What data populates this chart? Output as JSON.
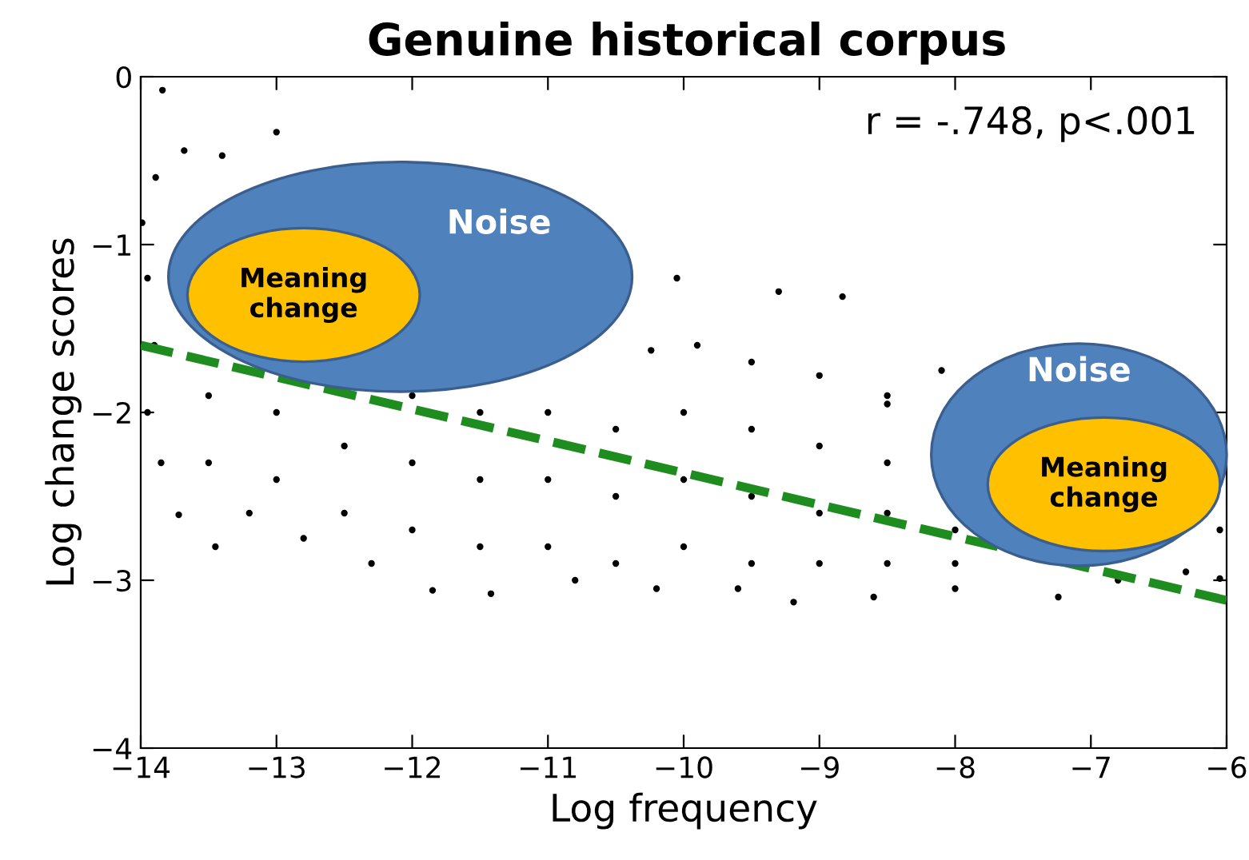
{
  "chart_data": {
    "type": "scatter",
    "title": "Genuine historical corpus",
    "xlabel": "Log frequency",
    "ylabel": "Log change scores",
    "xlim": [
      -14,
      -6
    ],
    "ylim": [
      -4,
      0
    ],
    "xticks": [
      -14,
      -13,
      -12,
      -11,
      -10,
      -9,
      -8,
      -7,
      -6
    ],
    "yticks": [
      -4,
      -3,
      -2,
      -1,
      0
    ],
    "grid": false,
    "legend": false,
    "annotations": [
      "r = -.748, p<.001",
      "Noise",
      "Meaning change",
      "Noise",
      "Meaning change"
    ],
    "series": [
      {
        "color": "#000000",
        "marker": "circle",
        "x": [
          -13.84,
          -13.0,
          -13.68,
          -13.4,
          -13.89,
          -10.05,
          -9.3,
          -8.83,
          -8.1,
          -8.5,
          -13.99,
          -13.95,
          -13.9,
          -13.95,
          -13.85,
          -13.72,
          -13.45,
          -13.2,
          -12.8,
          -12.3,
          -11.85,
          -11.42,
          -10.8,
          -10.2,
          -9.6,
          -9.19,
          -8.6,
          -8.0,
          -7.24,
          -6.8,
          -6.3,
          -6.05,
          -6.05,
          -10.24,
          -9.9,
          -9.5,
          -9.0,
          -8.5,
          -13.5,
          -13.5,
          -13.0,
          -13.0,
          -12.5,
          -12.5,
          -12.0,
          -12.0,
          -12.0,
          -11.5,
          -11.5,
          -11.5,
          -11.0,
          -11.0,
          -11.0,
          -10.5,
          -10.5,
          -10.5,
          -10.0,
          -10.0,
          -10.0,
          -9.5,
          -9.5,
          -9.5,
          -9.0,
          -9.0,
          -9.0,
          -8.5,
          -8.5,
          -8.5,
          -8.0,
          -8.0
        ],
        "values": [
          -0.08,
          -0.33,
          -0.44,
          -0.47,
          -0.6,
          -1.2,
          -1.28,
          -1.31,
          -1.75,
          -1.95,
          -0.87,
          -1.2,
          -1.6,
          -2.0,
          -2.3,
          -2.61,
          -2.8,
          -2.6,
          -2.75,
          -2.9,
          -3.06,
          -3.08,
          -3.0,
          -3.05,
          -3.05,
          -3.13,
          -3.1,
          -3.05,
          -3.1,
          -3.0,
          -2.95,
          -2.99,
          -2.7,
          -1.63,
          -1.6,
          -1.7,
          -1.78,
          -1.9,
          -1.9,
          -2.3,
          -2.0,
          -2.4,
          -2.2,
          -2.6,
          -1.9,
          -2.3,
          -2.7,
          -2.0,
          -2.4,
          -2.8,
          -2.0,
          -2.4,
          -2.8,
          -2.1,
          -2.5,
          -2.9,
          -2.0,
          -2.4,
          -2.8,
          -2.1,
          -2.5,
          -2.9,
          -2.2,
          -2.6,
          -2.9,
          -2.3,
          -2.6,
          -2.9,
          -2.7,
          -2.9
        ]
      },
      {
        "type": "line",
        "color": "#1e8c1e",
        "line_style": "dashed",
        "marker": "none",
        "x": [
          -14,
          -6
        ],
        "values": [
          -1.6,
          -3.12
        ]
      }
    ]
  }
}
